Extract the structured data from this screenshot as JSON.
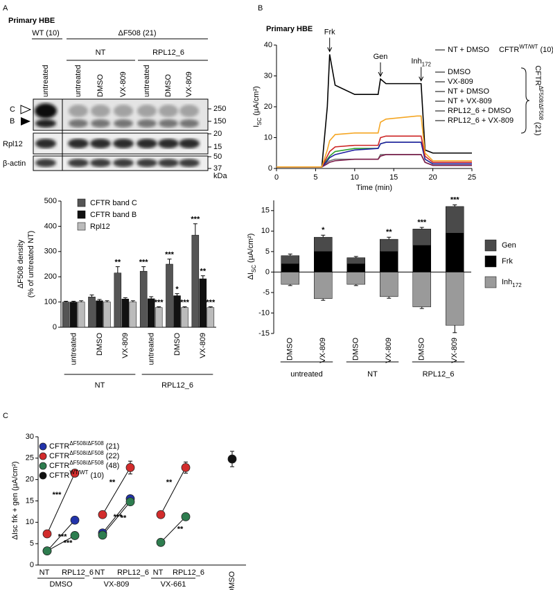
{
  "panel_labels": [
    "A",
    "B",
    "C"
  ],
  "blot": {
    "title": "Primary HBE",
    "groups": [
      {
        "label": "WT (10)"
      },
      {
        "label": "ΔF508 (21)",
        "subgroups": [
          "NT",
          "RPL12_6"
        ]
      }
    ],
    "lanes": [
      "untreated",
      "untreated",
      "DMSO",
      "VX-809",
      "untreated",
      "DMSO",
      "VX-809"
    ],
    "rows": [
      "Rpl12",
      "β-actin"
    ],
    "band_markers": [
      "C",
      "B"
    ],
    "mw": [
      "250",
      "150",
      "20",
      "15",
      "50",
      "37"
    ],
    "mw_unit": "kDa"
  },
  "chart_data": [
    {
      "type": "bar",
      "ylabel": [
        "ΔF508 density",
        "(% of untreated NT)"
      ],
      "categories": [
        "untreated",
        "DMSO",
        "VX-809",
        "untreated",
        "DMSO",
        "VX-809"
      ],
      "groups": [
        {
          "label": "NT",
          "count": 3
        },
        {
          "label": "RPL12_6",
          "count": 3
        }
      ],
      "ylim": [
        0,
        500
      ],
      "yticks": [
        0,
        100,
        200,
        300,
        400,
        500
      ],
      "series": [
        {
          "name": "CFTR band C",
          "color": "#555555",
          "values": [
            100,
            120,
            215,
            222,
            250,
            365
          ],
          "errors": [
            3,
            8,
            25,
            18,
            20,
            45
          ]
        },
        {
          "name": "CFTR band B",
          "color": "#111111",
          "values": [
            100,
            105,
            112,
            113,
            125,
            192
          ],
          "errors": [
            3,
            5,
            5,
            8,
            8,
            12
          ]
        },
        {
          "name": "Rpl12",
          "color": "#bbbbbb",
          "values": [
            100,
            100,
            100,
            78,
            78,
            78
          ],
          "errors": [
            5,
            5,
            5,
            3,
            3,
            3
          ]
        }
      ],
      "annotations": [
        {
          "text": "**",
          "series": 0,
          "category": 2
        },
        {
          "text": "***",
          "series": 0,
          "category": 3
        },
        {
          "text": "***",
          "series": 0,
          "category": 4
        },
        {
          "text": "***",
          "series": 0,
          "category": 5
        },
        {
          "text": "*",
          "series": 1,
          "category": 4
        },
        {
          "text": "**",
          "series": 1,
          "category": 5
        },
        {
          "text": "***",
          "series": 2,
          "category": 3
        },
        {
          "text": "***",
          "series": 2,
          "category": 4
        },
        {
          "text": "***",
          "series": 2,
          "category": 5
        }
      ]
    },
    {
      "type": "line",
      "title": "Primary HBE",
      "ylabel": {
        "text": "I",
        "sub": "SC",
        "suffix": "(µA/cm²)"
      },
      "xlabel": "Time (min)",
      "xlim": [
        0,
        25
      ],
      "xticks": [
        0,
        5,
        10,
        15,
        20,
        25
      ],
      "ylim": [
        0,
        40
      ],
      "yticks": [
        0,
        10,
        20,
        30,
        40
      ],
      "x": [
        0,
        5.8,
        6.5,
        6.8,
        7.5,
        10,
        13,
        13.3,
        14,
        18,
        18.5,
        19,
        20,
        25
      ],
      "series": [
        {
          "name": "NT + DMSO",
          "note": {
            "text": "CFTR",
            "sup": "WT/WT",
            "suffix": "(10)"
          },
          "color": "#000000",
          "values": [
            0.5,
            0.5,
            20,
            37,
            27,
            24,
            24,
            29,
            27.5,
            27.5,
            27.5,
            6,
            5,
            5
          ]
        },
        {
          "name": "DMSO",
          "color": "#777777",
          "values": [
            0.5,
            0.5,
            2,
            2.5,
            3,
            3,
            3,
            4.5,
            4.5,
            4.5,
            4.5,
            2,
            1,
            1
          ]
        },
        {
          "name": "VX-809",
          "color": "#2ca02c",
          "values": [
            0.5,
            0.5,
            3,
            4,
            5.5,
            6.5,
            6.5,
            8,
            8.5,
            8.5,
            8.5,
            3,
            1.5,
            1.5
          ]
        },
        {
          "name": "NT + DMSO",
          "color": "#7b1c4a",
          "values": [
            0.5,
            0.5,
            1.5,
            2,
            2.5,
            3,
            3,
            4,
            4.5,
            4.5,
            4.5,
            2,
            1,
            1
          ]
        },
        {
          "name": "NT + VX-809",
          "color": "#1f1fa0",
          "values": [
            0.5,
            0.5,
            2.5,
            3.5,
            4.5,
            6,
            6.5,
            8,
            8.5,
            8.5,
            8.5,
            3,
            1.5,
            1.5
          ]
        },
        {
          "name": "RPL12_6 + DMSO",
          "color": "#cc2222",
          "values": [
            0.5,
            0.5,
            4,
            5.5,
            7,
            7.5,
            7.5,
            10,
            10.5,
            10.5,
            10.5,
            4,
            2,
            2
          ]
        },
        {
          "name": "RPL12_6 + VX-809",
          "color": "#f5a623",
          "values": [
            0.5,
            0.5,
            6,
            9,
            11,
            11.5,
            11.5,
            15,
            16,
            17,
            17,
            5,
            2.5,
            2.5
          ]
        }
      ],
      "bracket_label": {
        "text": "CFTR",
        "sup": "ΔF508/ΔF508",
        "suffix": "(21)"
      },
      "annotations": [
        {
          "text": "Frk",
          "x": 6.8
        },
        {
          "text": "Gen",
          "x": 13.3
        },
        {
          "text": "Inh",
          "sub": "172",
          "x": 18.5
        }
      ]
    },
    {
      "type": "stacked_bar",
      "ylabel": {
        "text": "ΔI",
        "sub": "SC",
        "suffix": "(µA/cm²)"
      },
      "categories": [
        "DMSO",
        "VX-809",
        "DMSO",
        "VX-809",
        "DMSO",
        "VX-809"
      ],
      "groups": [
        {
          "label": "untreated",
          "count": 2
        },
        {
          "label": "NT",
          "count": 2
        },
        {
          "label": "RPL12_6",
          "count": 2
        }
      ],
      "ylim": [
        -15,
        17.5
      ],
      "yticks": [
        -15,
        -10,
        -5,
        0,
        5,
        10,
        15
      ],
      "series": [
        {
          "name": "Gen",
          "color": "#4a4a4a",
          "values": [
            2,
            3.5,
            1.5,
            3,
            4,
            6.5
          ],
          "errors": [
            0.4,
            0.5,
            0.3,
            0.5,
            0.4,
            0.4
          ]
        },
        {
          "name": "Frk",
          "color": "#000000",
          "values": [
            2,
            5,
            2,
            5,
            6.5,
            9.5
          ],
          "errors": [
            0.5,
            1.2,
            0.5,
            0.6,
            0.4,
            0.5
          ]
        },
        {
          "name": "Inh",
          "name_sub": "172",
          "color": "#9a9a9a",
          "values": [
            -3,
            -6.5,
            -3,
            -6,
            -8.5,
            -13
          ],
          "errors": [
            0.3,
            0.4,
            0.3,
            0.4,
            0.4,
            1.8
          ]
        }
      ],
      "annotations": [
        {
          "text": "*",
          "category": 1
        },
        {
          "text": "**",
          "category": 3
        },
        {
          "text": "***",
          "category": 4
        },
        {
          "text": "***",
          "category": 5
        }
      ]
    },
    {
      "type": "scatter",
      "ylabel": "ΔIsc frk + gen (µA/cm²)",
      "categories": [
        "NT",
        "RPL12_6",
        "NT",
        "RPL12_6",
        "NT",
        "RPL12_6",
        "DMSO"
      ],
      "groups": [
        {
          "label": "DMSO",
          "count": 2
        },
        {
          "label": "VX-809",
          "count": 2
        },
        {
          "label": "VX-661",
          "count": 2
        }
      ],
      "ylim": [
        0,
        30
      ],
      "yticks": [
        0,
        5,
        10,
        15,
        20,
        25,
        30
      ],
      "series": [
        {
          "name": "CFTR",
          "name_sup": "ΔF508/ΔF508",
          "name_suffix": "(21)",
          "color": "#2233aa",
          "values": [
            3.3,
            10.5,
            7.5,
            15.5,
            null,
            null,
            null
          ]
        },
        {
          "name": "CFTR",
          "name_sup": "ΔF508/ΔF508",
          "name_suffix": "(22)",
          "color": "#d22c2c",
          "values": [
            7.3,
            21.5,
            11.8,
            22.8,
            11.8,
            22.8,
            null
          ],
          "errors": [
            0.3,
            0.6,
            0.4,
            1.5,
            0.3,
            1.3,
            null
          ]
        },
        {
          "name": "CFTR",
          "name_sup": "ΔF508/ΔF508",
          "name_suffix": "(48)",
          "color": "#2e7d4f",
          "values": [
            3.3,
            6.9,
            7,
            14.8,
            5.3,
            11.3,
            null
          ]
        },
        {
          "name": "CFTR",
          "name_sup": "WT/WT",
          "name_suffix": "(10)",
          "color": "#111111",
          "values": [
            null,
            null,
            null,
            null,
            null,
            null,
            24.8
          ],
          "errors": [
            null,
            null,
            null,
            null,
            null,
            null,
            1.8
          ]
        }
      ],
      "annotations": [
        {
          "text": "***",
          "series": 1,
          "group": 0
        },
        {
          "text": "***",
          "series": 0,
          "group": 0
        },
        {
          "text": "***",
          "series": 2,
          "group": 0
        },
        {
          "text": "**",
          "series": 1,
          "group": 1
        },
        {
          "text": "***",
          "series": 0,
          "group": 1
        },
        {
          "text": "**",
          "series": 2,
          "group": 1
        },
        {
          "text": "**",
          "series": 1,
          "group": 2
        },
        {
          "text": "**",
          "series": 2,
          "group": 2
        }
      ]
    }
  ]
}
